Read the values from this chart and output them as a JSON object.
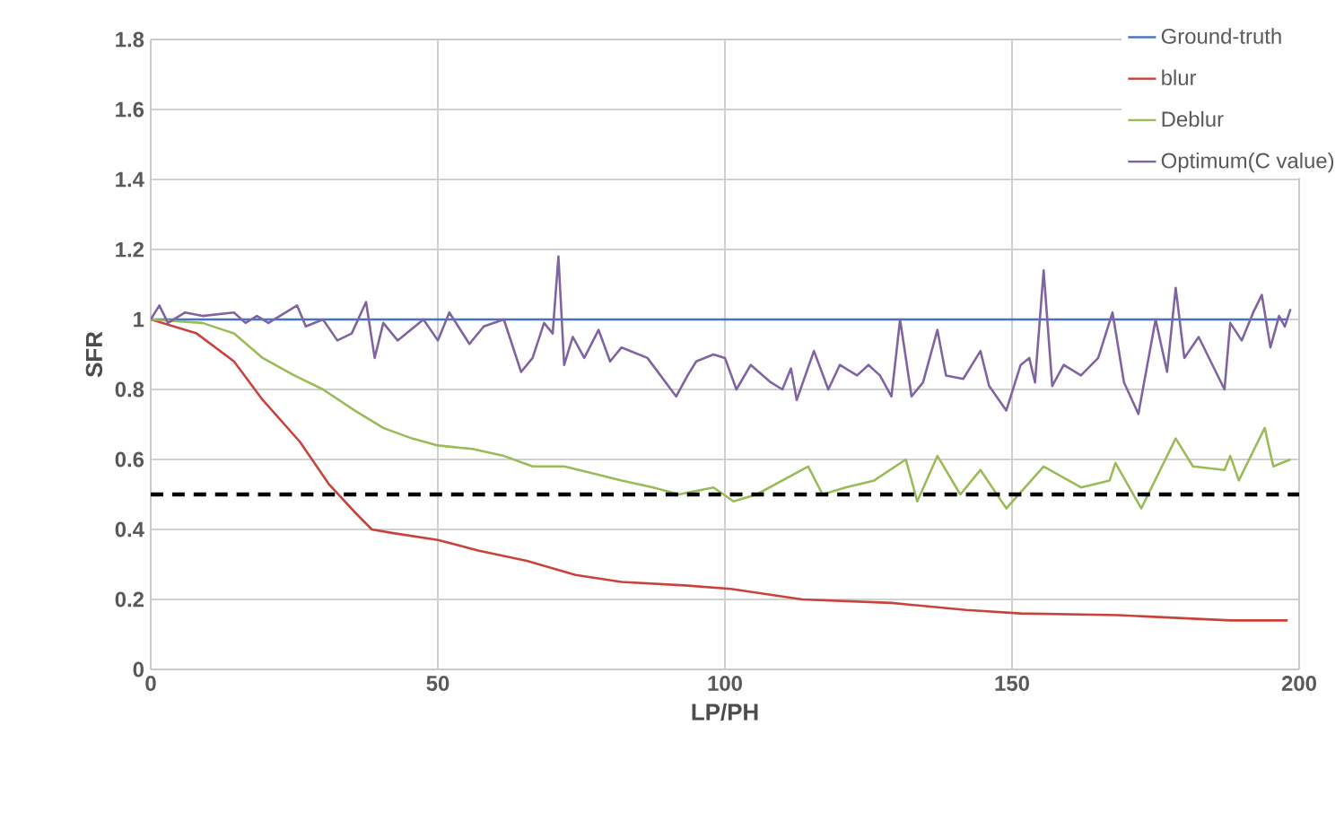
{
  "chart_data": {
    "type": "line",
    "xlabel": "LP/PH",
    "ylabel": "SFR",
    "xlim": [
      0,
      200
    ],
    "ylim": [
      0,
      1.8
    ],
    "xticks": [
      0,
      50,
      100,
      150,
      200
    ],
    "yticks": [
      0,
      0.2,
      0.4,
      0.6,
      0.8,
      1,
      1.2,
      1.4,
      1.6,
      1.8
    ],
    "grid": true,
    "legend": "top right",
    "ref_lines": [
      {
        "axis": "y",
        "value": 0.5,
        "color": "#000000",
        "line_style": "dashed"
      }
    ],
    "series": [
      {
        "name": "Ground-truth",
        "color": "#4472c4",
        "x": [
          0,
          198
        ],
        "values": [
          1,
          1
        ]
      },
      {
        "name": "blur",
        "color": "#c9433d",
        "x": [
          0,
          8,
          14.5,
          19.5,
          26,
          31,
          35.5,
          38.5,
          42,
          50,
          57,
          65.5,
          74,
          82,
          93,
          101,
          113.5,
          129,
          142,
          151.5,
          168.5,
          188,
          198
        ],
        "values": [
          1,
          0.96,
          0.88,
          0.77,
          0.65,
          0.53,
          0.45,
          0.4,
          0.39,
          0.37,
          0.34,
          0.31,
          0.27,
          0.25,
          0.24,
          0.23,
          0.2,
          0.19,
          0.17,
          0.16,
          0.155,
          0.14,
          0.14
        ]
      },
      {
        "name": "Deblur",
        "color": "#9bbb59",
        "x": [
          0,
          9,
          14.5,
          19.5,
          25,
          30,
          35.5,
          40.5,
          45.5,
          50,
          56,
          61.5,
          66.5,
          72,
          77,
          82,
          87.5,
          92,
          98,
          101.5,
          105.5,
          114.5,
          117,
          121,
          126,
          131.5,
          133.5,
          137,
          141,
          144.5,
          149,
          155.5,
          162,
          167,
          168,
          172.5,
          178.5,
          181.5,
          187,
          188,
          189.5,
          194,
          195.5,
          198.5
        ],
        "values": [
          1,
          0.99,
          0.96,
          0.89,
          0.84,
          0.8,
          0.74,
          0.69,
          0.66,
          0.64,
          0.63,
          0.61,
          0.58,
          0.58,
          0.56,
          0.54,
          0.52,
          0.5,
          0.52,
          0.48,
          0.5,
          0.58,
          0.5,
          0.52,
          0.54,
          0.6,
          0.48,
          0.61,
          0.5,
          0.57,
          0.46,
          0.58,
          0.52,
          0.54,
          0.59,
          0.46,
          0.66,
          0.58,
          0.57,
          0.61,
          0.54,
          0.69,
          0.58,
          0.6
        ]
      },
      {
        "name": "Optimum(C value)",
        "color": "#8064a2",
        "x": [
          0,
          1.5,
          3,
          6,
          9,
          14.5,
          16.5,
          18.5,
          20.5,
          25.5,
          27,
          30,
          32.5,
          35,
          37.5,
          39,
          40.5,
          43,
          47.5,
          50,
          52,
          55.5,
          58,
          61.5,
          64.5,
          66.5,
          68.5,
          70,
          71,
          72,
          73.5,
          75.5,
          78,
          80,
          82,
          86.5,
          91.5,
          93.5,
          95,
          98,
          100,
          102,
          104.5,
          108,
          110,
          111.5,
          112.5,
          115.5,
          118,
          120,
          123,
          125,
          127,
          129,
          130.5,
          132.5,
          134.5,
          137,
          138.5,
          141.5,
          144.5,
          146,
          149,
          151.5,
          153,
          154,
          155.5,
          157,
          159,
          162,
          165,
          167.5,
          169.5,
          172,
          175,
          177,
          178.5,
          180,
          182.5,
          187,
          188,
          190,
          192,
          193.5,
          195,
          196.5,
          197.5,
          198.5
        ],
        "values": [
          1,
          1.04,
          0.99,
          1.02,
          1.01,
          1.02,
          0.99,
          1.01,
          0.99,
          1.04,
          0.98,
          1,
          0.94,
          0.96,
          1.05,
          0.89,
          0.99,
          0.94,
          1,
          0.94,
          1.02,
          0.93,
          0.98,
          1,
          0.85,
          0.89,
          0.99,
          0.96,
          1.18,
          0.87,
          0.95,
          0.89,
          0.97,
          0.88,
          0.92,
          0.89,
          0.78,
          0.84,
          0.88,
          0.9,
          0.89,
          0.8,
          0.87,
          0.82,
          0.8,
          0.86,
          0.77,
          0.91,
          0.8,
          0.87,
          0.84,
          0.87,
          0.84,
          0.78,
          1,
          0.78,
          0.82,
          0.97,
          0.84,
          0.83,
          0.91,
          0.81,
          0.74,
          0.87,
          0.89,
          0.82,
          1.14,
          0.81,
          0.87,
          0.84,
          0.89,
          1.02,
          0.82,
          0.73,
          1,
          0.85,
          1.09,
          0.89,
          0.95,
          0.8,
          0.99,
          0.94,
          1.02,
          1.07,
          0.92,
          1.01,
          0.98,
          1.03
        ]
      }
    ]
  }
}
